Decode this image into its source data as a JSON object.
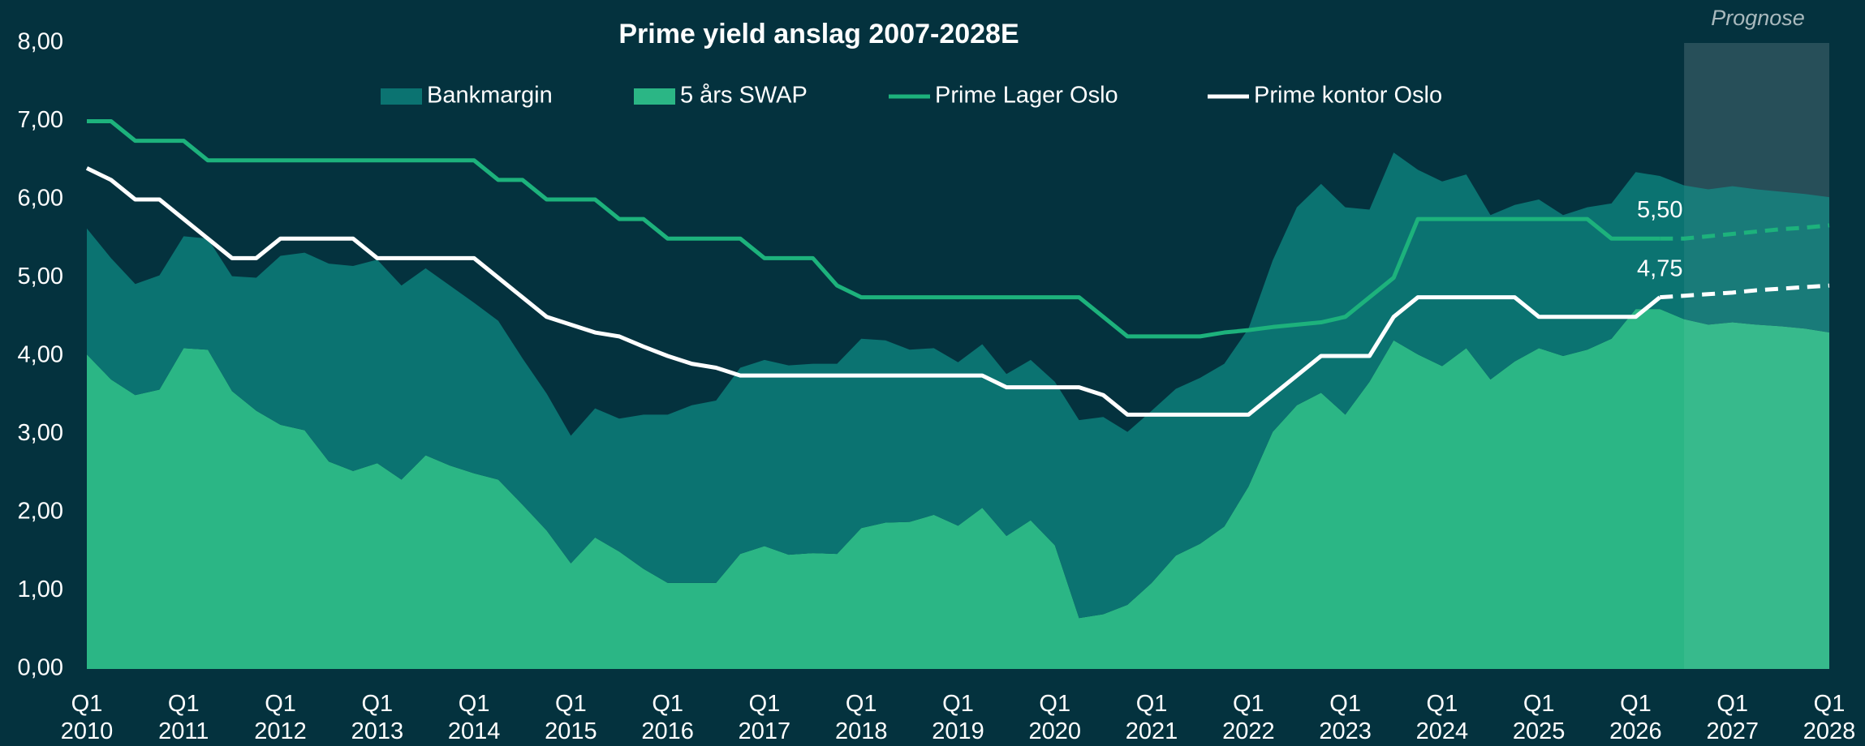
{
  "chart_data": {
    "type": "area",
    "title": "Prime yield anslag 2007-2028E",
    "categories": [
      "Q1 2010",
      null,
      null,
      null,
      "Q1 2011",
      null,
      null,
      null,
      "Q1 2012",
      null,
      null,
      null,
      "Q1 2013",
      null,
      null,
      null,
      "Q1 2014",
      null,
      null,
      null,
      "Q1 2015",
      null,
      null,
      null,
      "Q1 2016",
      null,
      null,
      null,
      "Q1 2017",
      null,
      null,
      null,
      "Q1 2018",
      null,
      null,
      null,
      "Q1 2019",
      null,
      null,
      null,
      "Q1 2020",
      null,
      null,
      null,
      "Q1 2021",
      null,
      null,
      null,
      "Q1 2022",
      null,
      null,
      null,
      "Q1 2023",
      null,
      null,
      null,
      "Q1 2024",
      null,
      null,
      null,
      "Q1 2025",
      null,
      null,
      null,
      "Q1 2026",
      null,
      null,
      null,
      "Q1 2027",
      null,
      null,
      null,
      "Q1 2028"
    ],
    "ylim": [
      0,
      8
    ],
    "yticks": [
      {
        "value": 0,
        "label": "0,00"
      },
      {
        "value": 1,
        "label": "1,00"
      },
      {
        "value": 2,
        "label": "2,00"
      },
      {
        "value": 3,
        "label": "3,00"
      },
      {
        "value": 4,
        "label": "4,00"
      },
      {
        "value": 5,
        "label": "5,00"
      },
      {
        "value": 6,
        "label": "6,00"
      },
      {
        "value": 7,
        "label": "7,00"
      },
      {
        "value": 8,
        "label": "8,00"
      }
    ],
    "grid": false,
    "legend": "top",
    "prognose": {
      "label": "Prognose",
      "from_index": 66
    },
    "dash_from_index": 65,
    "series": [
      {
        "name": "5 års SWAP",
        "kind": "area",
        "color": "#2bb685",
        "values": [
          4.02,
          3.7,
          3.5,
          3.57,
          4.1,
          4.08,
          3.55,
          3.3,
          3.12,
          3.05,
          2.65,
          2.53,
          2.63,
          2.42,
          2.73,
          2.6,
          2.5,
          2.42,
          2.1,
          1.77,
          1.35,
          1.68,
          1.5,
          1.28,
          1.1,
          1.1,
          1.1,
          1.47,
          1.57,
          1.46,
          1.48,
          1.47,
          1.8,
          1.87,
          1.88,
          1.97,
          1.83,
          2.06,
          1.7,
          1.9,
          1.58,
          0.65,
          0.7,
          0.82,
          1.1,
          1.45,
          1.6,
          1.82,
          2.33,
          3.03,
          3.37,
          3.53,
          3.25,
          3.67,
          4.2,
          4.02,
          3.87,
          4.1,
          3.7,
          3.93,
          4.1,
          4.0,
          4.08,
          4.22,
          4.6,
          4.6,
          4.47,
          4.4,
          4.43,
          4.4,
          4.38,
          4.35,
          4.3
        ]
      },
      {
        "name": "Bankmargin",
        "kind": "area",
        "color": "#0b7371",
        "values": [
          1.61,
          1.55,
          1.42,
          1.46,
          1.43,
          1.42,
          1.47,
          1.7,
          2.16,
          2.27,
          2.53,
          2.62,
          2.6,
          2.48,
          2.39,
          2.3,
          2.18,
          2.03,
          1.87,
          1.75,
          1.63,
          1.65,
          1.7,
          1.97,
          2.15,
          2.27,
          2.33,
          2.38,
          2.38,
          2.42,
          2.42,
          2.43,
          2.42,
          2.33,
          2.2,
          2.13,
          2.09,
          2.09,
          2.07,
          2.05,
          2.09,
          2.53,
          2.52,
          2.21,
          2.2,
          2.13,
          2.12,
          2.08,
          2.02,
          2.19,
          2.53,
          2.67,
          2.65,
          2.2,
          2.4,
          2.36,
          2.36,
          2.22,
          2.1,
          2.0,
          1.9,
          1.8,
          1.82,
          1.73,
          1.75,
          1.7,
          1.71,
          1.73,
          1.74,
          1.73,
          1.72,
          1.72,
          1.73
        ]
      },
      {
        "name": "Prime Lager Oslo",
        "kind": "line",
        "color": "#1db27c",
        "values": [
          7.0,
          7.0,
          6.75,
          6.75,
          6.75,
          6.5,
          6.5,
          6.5,
          6.5,
          6.5,
          6.5,
          6.5,
          6.5,
          6.5,
          6.5,
          6.5,
          6.5,
          6.25,
          6.25,
          6.0,
          6.0,
          6.0,
          5.75,
          5.75,
          5.5,
          5.5,
          5.5,
          5.5,
          5.25,
          5.25,
          5.25,
          4.9,
          4.75,
          4.75,
          4.75,
          4.75,
          4.75,
          4.75,
          4.75,
          4.75,
          4.75,
          4.75,
          4.5,
          4.25,
          4.25,
          4.25,
          4.25,
          4.3,
          4.33,
          4.37,
          4.4,
          4.43,
          4.5,
          4.75,
          5.0,
          5.75,
          5.75,
          5.75,
          5.75,
          5.75,
          5.75,
          5.75,
          5.75,
          5.5,
          5.5,
          5.5,
          5.5,
          5.53,
          5.56,
          5.59,
          5.62,
          5.64,
          5.67
        ],
        "value_labels": [
          null,
          null,
          null,
          null,
          null,
          null,
          null,
          null,
          null,
          null,
          null,
          null,
          null,
          null,
          null,
          null,
          null,
          null,
          null,
          null,
          null,
          null,
          null,
          null,
          null,
          null,
          null,
          null,
          null,
          null,
          null,
          null,
          null,
          null,
          null,
          null,
          null,
          null,
          null,
          null,
          null,
          null,
          null,
          null,
          null,
          null,
          null,
          null,
          null,
          null,
          null,
          null,
          null,
          null,
          null,
          null,
          null,
          null,
          null,
          null,
          null,
          null,
          null,
          null,
          null,
          "5,50",
          null,
          null,
          null,
          null,
          null,
          null,
          null
        ]
      },
      {
        "name": "Prime kontor Oslo",
        "kind": "line",
        "color": "#ffffff",
        "values": [
          6.4,
          6.25,
          6.0,
          6.0,
          5.75,
          5.5,
          5.25,
          5.25,
          5.5,
          5.5,
          5.5,
          5.5,
          5.25,
          5.25,
          5.25,
          5.25,
          5.25,
          5.0,
          4.75,
          4.5,
          4.4,
          4.3,
          4.25,
          4.12,
          4.0,
          3.9,
          3.85,
          3.75,
          3.75,
          3.75,
          3.75,
          3.75,
          3.75,
          3.75,
          3.75,
          3.75,
          3.75,
          3.75,
          3.6,
          3.6,
          3.6,
          3.6,
          3.5,
          3.25,
          3.25,
          3.25,
          3.25,
          3.25,
          3.25,
          3.5,
          3.75,
          4.0,
          4.0,
          4.0,
          4.5,
          4.75,
          4.75,
          4.75,
          4.75,
          4.75,
          4.5,
          4.5,
          4.5,
          4.5,
          4.5,
          4.75,
          4.77,
          4.79,
          4.81,
          4.84,
          4.86,
          4.88,
          4.9
        ],
        "value_labels": [
          null,
          null,
          null,
          null,
          null,
          null,
          null,
          null,
          null,
          null,
          null,
          null,
          null,
          null,
          null,
          null,
          null,
          null,
          null,
          null,
          null,
          null,
          null,
          null,
          null,
          null,
          null,
          null,
          null,
          null,
          null,
          null,
          null,
          null,
          null,
          null,
          null,
          null,
          null,
          null,
          null,
          null,
          null,
          null,
          null,
          null,
          null,
          null,
          null,
          null,
          null,
          null,
          null,
          null,
          null,
          null,
          null,
          null,
          null,
          null,
          null,
          null,
          null,
          null,
          null,
          "4,75",
          null,
          null,
          null,
          null,
          null,
          null,
          null
        ]
      }
    ]
  }
}
